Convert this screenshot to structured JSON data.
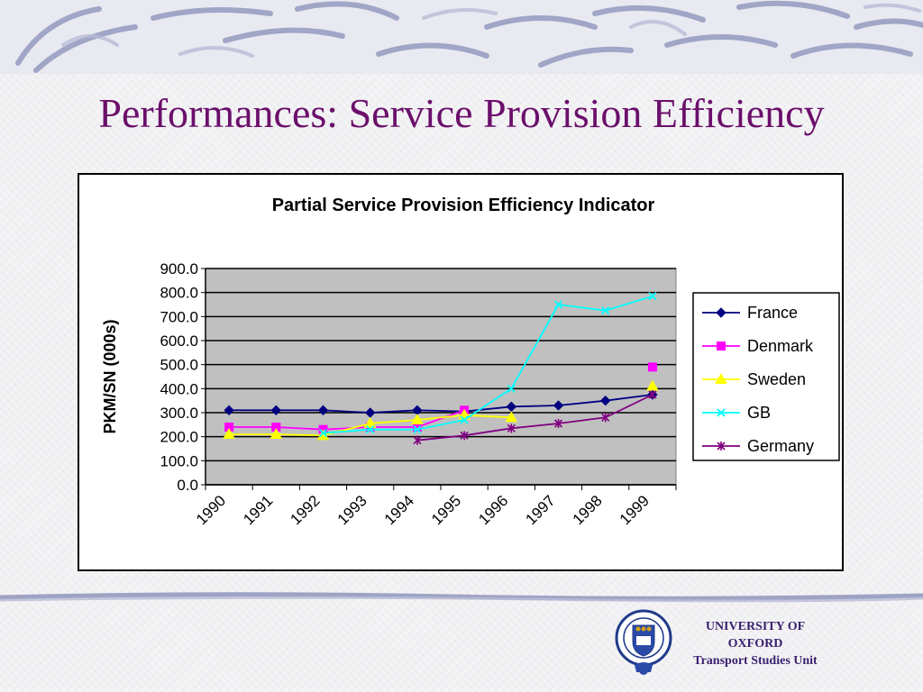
{
  "slide": {
    "title": "Performances: Service Provision Efficiency"
  },
  "footer": {
    "line1": "UNIVERSITY OF",
    "line2": "OXFORD",
    "line3": "Transport Studies Unit"
  },
  "colors": {
    "title": "#6b0f6b",
    "plot_bg": "#c0c0c0",
    "footer_text": "#3a1f6e"
  },
  "chart_data": {
    "type": "line",
    "title": "Partial Service Provision Efficiency Indicator",
    "xlabel": "",
    "ylabel": "PKM/SN (000s)",
    "categories": [
      "1990",
      "1991",
      "1992",
      "1993",
      "1994",
      "1995",
      "1996",
      "1997",
      "1998",
      "1999"
    ],
    "ylim": [
      0,
      900
    ],
    "yticks": [
      "900.0",
      "800.0",
      "700.0",
      "600.0",
      "500.0",
      "400.0",
      "300.0",
      "200.0",
      "100.0",
      "0.0"
    ],
    "grid": true,
    "legend_position": "right",
    "series": [
      {
        "name": "France",
        "color": "#000080",
        "marker": "diamond",
        "values": [
          310,
          310,
          310,
          300,
          310,
          305,
          325,
          330,
          350,
          375
        ]
      },
      {
        "name": "Denmark",
        "color": "#ff00ff",
        "marker": "square",
        "values": [
          240,
          240,
          230,
          240,
          240,
          310,
          null,
          null,
          null,
          490
        ]
      },
      {
        "name": "Sweden",
        "color": "#ffff00",
        "marker": "triangle",
        "values": [
          210,
          210,
          205,
          255,
          270,
          290,
          280,
          null,
          null,
          410
        ]
      },
      {
        "name": "GB",
        "color": "#00ffff",
        "marker": "x",
        "values": [
          null,
          null,
          215,
          230,
          230,
          270,
          400,
          750,
          725,
          785
        ]
      },
      {
        "name": "Germany",
        "color": "#800080",
        "marker": "star",
        "values": [
          null,
          null,
          null,
          null,
          185,
          205,
          235,
          255,
          280,
          375
        ]
      }
    ]
  }
}
